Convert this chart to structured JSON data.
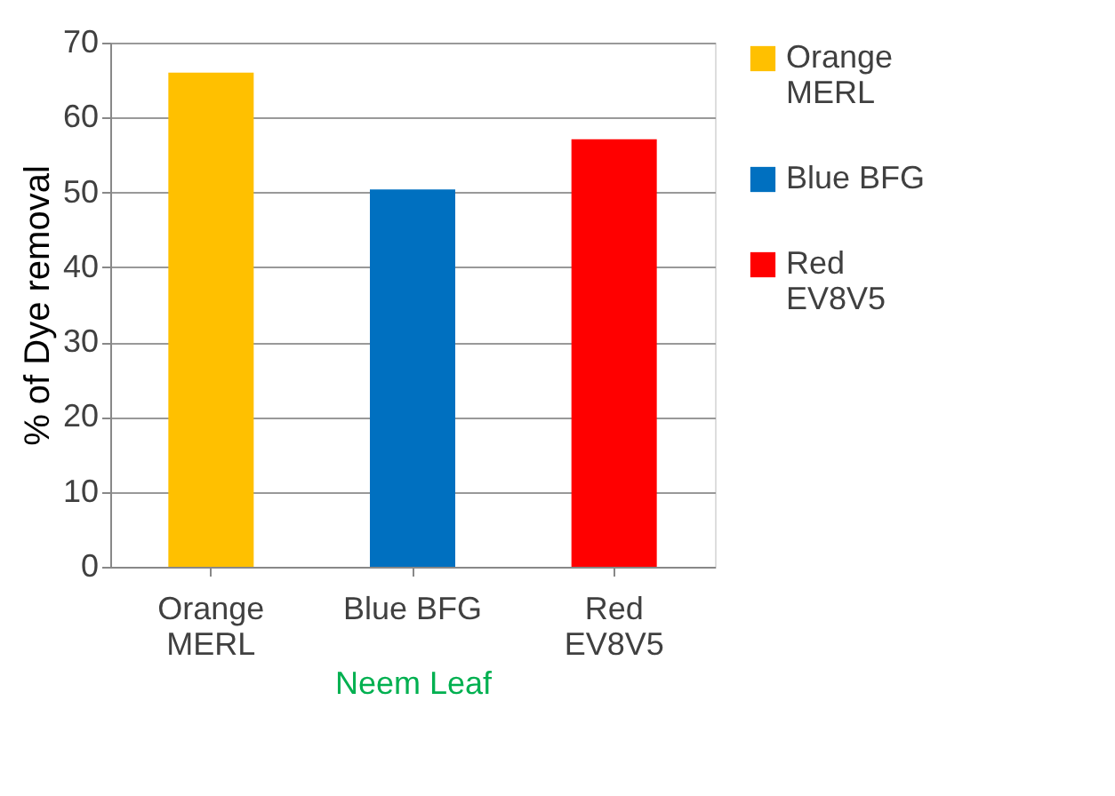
{
  "chart_data": {
    "type": "bar",
    "xlabel": "Neem Leaf",
    "ylabel": "% of Dye removal",
    "categories": [
      "Orange MERL",
      "Blue BFG",
      "Red EV8V5"
    ],
    "series": [
      {
        "name": "Orange MERL",
        "color": "#ffc000",
        "values": [
          66,
          null,
          null
        ]
      },
      {
        "name": "Blue BFG",
        "color": "#0070c0",
        "values": [
          null,
          50.4,
          null
        ]
      },
      {
        "name": "Red EV8V5",
        "color": "#ff0000",
        "values": [
          null,
          null,
          57.1
        ]
      }
    ],
    "stacked": true,
    "ylim": [
      0,
      70
    ],
    "yticks": [
      0,
      10,
      20,
      30,
      40,
      50,
      60,
      70
    ],
    "grid": "y",
    "legend": "right"
  }
}
